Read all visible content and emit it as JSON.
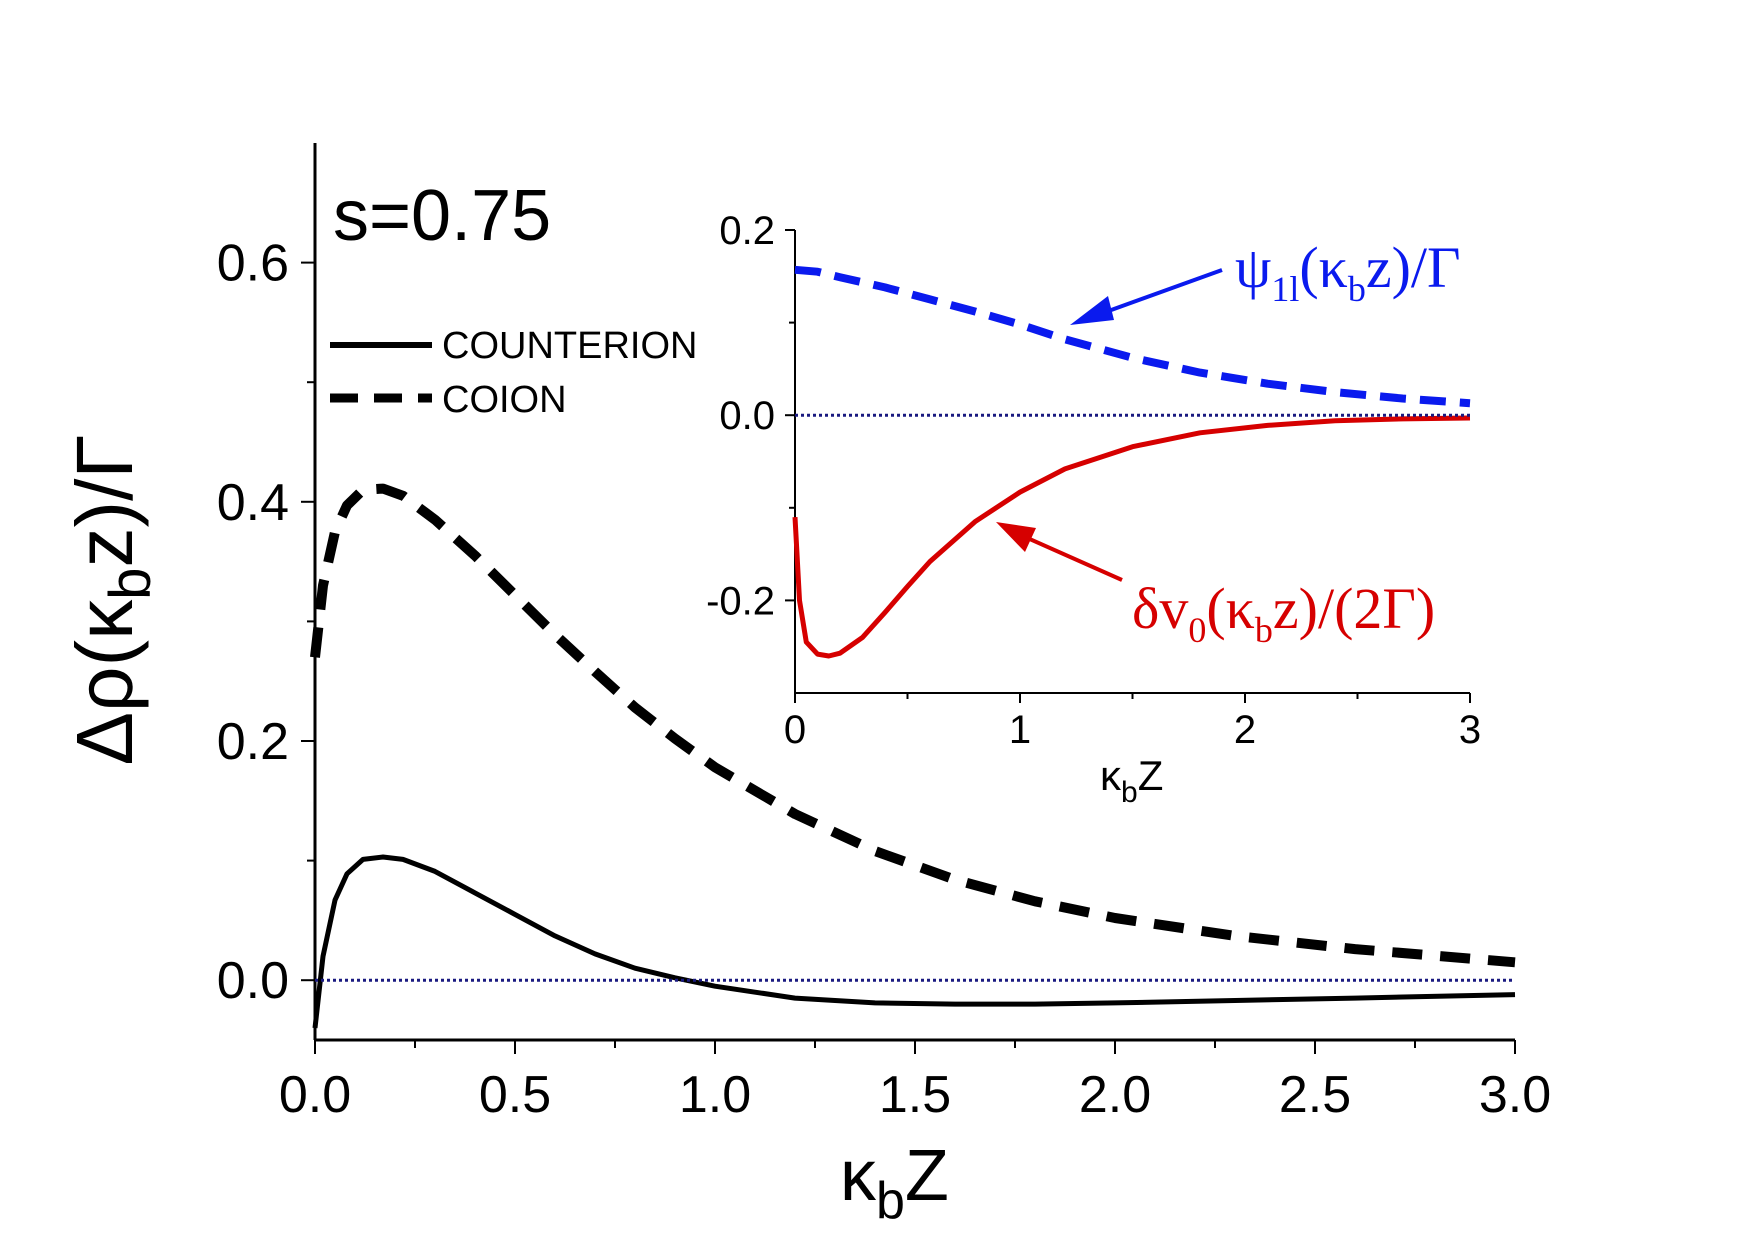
{
  "chart_data": [
    {
      "type": "line",
      "role": "main",
      "annotation": "s=0.75",
      "xlabel": {
        "main": "κ",
        "sub": "b",
        "tail": "Z"
      },
      "ylabel": {
        "pre": "Δρ(κ",
        "sub": "b",
        "post": "z)/Γ"
      },
      "xlim": [
        0.0,
        3.0
      ],
      "ylim": [
        -0.05,
        0.7
      ],
      "x_ticks": [
        0.0,
        0.5,
        1.0,
        1.5,
        2.0,
        2.5,
        3.0
      ],
      "x_tick_labels": [
        "0.0",
        "0.5",
        "1.0",
        "1.5",
        "2.0",
        "2.5",
        "3.0"
      ],
      "y_ticks": [
        0.0,
        0.2,
        0.4,
        0.6
      ],
      "y_tick_labels": [
        "0.0",
        "0.2",
        "0.4",
        "0.6"
      ],
      "legend": [
        {
          "label": "COUNTERION",
          "style": "solid"
        },
        {
          "label": "COION",
          "style": "dashed"
        }
      ],
      "series": [
        {
          "name": "COUNTERION",
          "style": "solid",
          "color": "#000000",
          "x": [
            0.0,
            0.02,
            0.05,
            0.08,
            0.12,
            0.17,
            0.22,
            0.3,
            0.4,
            0.5,
            0.6,
            0.7,
            0.8,
            0.9,
            1.0,
            1.2,
            1.4,
            1.6,
            1.8,
            2.0,
            2.3,
            2.6,
            3.0
          ],
          "y": [
            -0.04,
            0.02,
            0.067,
            0.089,
            0.101,
            0.103,
            0.101,
            0.091,
            0.073,
            0.055,
            0.037,
            0.022,
            0.01,
            0.002,
            -0.005,
            -0.015,
            -0.019,
            -0.02,
            -0.02,
            -0.019,
            -0.017,
            -0.015,
            -0.012
          ]
        },
        {
          "name": "COION",
          "style": "dashed",
          "color": "#000000",
          "x": [
            0.0,
            0.02,
            0.05,
            0.08,
            0.12,
            0.17,
            0.22,
            0.3,
            0.4,
            0.5,
            0.6,
            0.7,
            0.8,
            0.9,
            1.0,
            1.2,
            1.4,
            1.6,
            1.8,
            2.0,
            2.3,
            2.6,
            3.0
          ],
          "y": [
            0.27,
            0.33,
            0.375,
            0.397,
            0.41,
            0.411,
            0.405,
            0.385,
            0.355,
            0.322,
            0.289,
            0.258,
            0.228,
            0.202,
            0.178,
            0.139,
            0.108,
            0.084,
            0.066,
            0.052,
            0.037,
            0.026,
            0.015
          ]
        },
        {
          "name": "zero reference",
          "style": "dotted",
          "color": "#1a1a80",
          "x": [
            0.0,
            3.0
          ],
          "y": [
            0.0,
            0.0
          ]
        }
      ]
    },
    {
      "type": "line",
      "role": "inset",
      "xlabel": {
        "main": "κ",
        "sub": "b",
        "tail": "Z"
      },
      "xlim": [
        0.0,
        3.0
      ],
      "ylim": [
        -0.3,
        0.2
      ],
      "x_ticks": [
        0,
        1,
        2,
        3
      ],
      "x_tick_labels": [
        "0",
        "1",
        "2",
        "3"
      ],
      "y_ticks": [
        -0.2,
        0.0,
        0.2
      ],
      "y_tick_labels": [
        "-0.2",
        "0.0",
        "0.2"
      ],
      "annotations": [
        {
          "id": "psi",
          "pre": "ψ",
          "sub": "1l",
          "post": "(κ",
          "sub2": "b",
          "post2": "z)/Γ",
          "color": "#0a1aee",
          "arrow_target": [
            1.25,
            0.1
          ]
        },
        {
          "id": "delta",
          "pre": "δv",
          "sub": "0",
          "post": "(κ",
          "sub2": "b",
          "post2": "z)/(2Γ)",
          "color": "#d60000",
          "arrow_target": [
            0.9,
            -0.115
          ]
        }
      ],
      "series": [
        {
          "name": "ψ1l(κb z)/Γ",
          "style": "dashed",
          "color": "#0a1aee",
          "x": [
            0.0,
            0.1,
            0.2,
            0.4,
            0.6,
            0.8,
            1.0,
            1.2,
            1.5,
            1.8,
            2.1,
            2.4,
            2.7,
            3.0
          ],
          "y": [
            0.157,
            0.155,
            0.149,
            0.138,
            0.125,
            0.112,
            0.098,
            0.082,
            0.062,
            0.046,
            0.034,
            0.025,
            0.018,
            0.013
          ]
        },
        {
          "name": "δv0(κb z)/(2Γ)",
          "style": "solid",
          "color": "#d60000",
          "x": [
            0.0,
            0.02,
            0.05,
            0.1,
            0.15,
            0.2,
            0.3,
            0.4,
            0.5,
            0.6,
            0.8,
            1.0,
            1.2,
            1.5,
            1.8,
            2.1,
            2.4,
            2.7,
            3.0
          ],
          "y": [
            -0.11,
            -0.2,
            -0.245,
            -0.258,
            -0.26,
            -0.257,
            -0.24,
            -0.213,
            -0.185,
            -0.158,
            -0.115,
            -0.083,
            -0.058,
            -0.034,
            -0.019,
            -0.011,
            -0.006,
            -0.004,
            -0.003
          ]
        },
        {
          "name": "zero reference",
          "style": "dotted",
          "color": "#1a1a80",
          "x": [
            0.0,
            3.0
          ],
          "y": [
            0.0,
            0.0
          ]
        }
      ]
    }
  ]
}
